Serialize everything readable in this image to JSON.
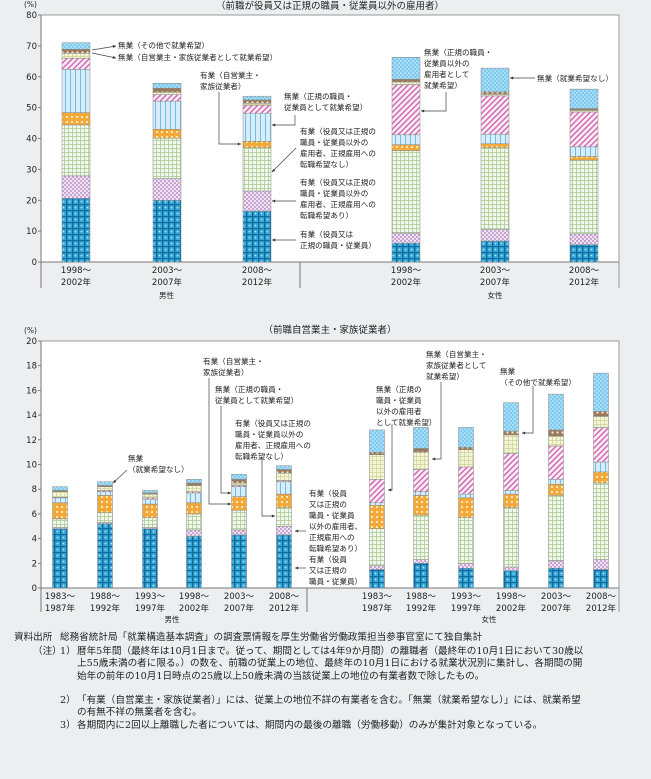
{
  "series_names": [
    "有業（役員又は正規の職員・従業員）",
    "有業（役員又は正規の職員・従業員以外の雇用者、正規雇用への転職希望あり）",
    "有業（役員又は正規の職員・従業員以外の雇用者、正規雇用への転職希望なし）",
    "有業（自営業主・家族従業者）",
    "無業（正規の職員・従業員として就業希望）",
    "無業（正規の職員・従業員以外の雇用者として就業希望）",
    "無業（自営業主・家族従業者として就業希望）",
    "無業（その他で就業希望）",
    "無業（就業希望なし）"
  ],
  "chart_data": [
    {
      "type": "bar",
      "stacked": true,
      "title": "（前職が役員又は正規の職員・従業員以外の雇用者）",
      "ylabel": "(%)",
      "ylim": [
        0,
        80
      ],
      "yticks": [
        0,
        10,
        20,
        30,
        40,
        50,
        60,
        70,
        80
      ],
      "groups": [
        {
          "name": "男性",
          "categories": [
            [
              "1998～",
              "2002年"
            ],
            [
              "2003～",
              "2007年"
            ],
            [
              "2008～",
              "2012年"
            ]
          ],
          "values": [
            [
              20.6,
              7.3,
              16.5,
              4.0,
              14.0,
              3.6,
              1.6,
              1.3,
              2.1
            ],
            [
              20.0,
              7.0,
              13.1,
              2.9,
              9.1,
              2.1,
              0.8,
              1.3,
              1.6
            ],
            [
              16.5,
              6.5,
              14.0,
              2.1,
              9.1,
              2.6,
              0.6,
              1.1,
              1.2
            ]
          ]
        },
        {
          "name": "女性",
          "categories": [
            [
              "1998～",
              "2002年"
            ],
            [
              "2003～",
              "2007年"
            ],
            [
              "2008～",
              "2012年"
            ]
          ],
          "values": [
            [
              6.1,
              3.3,
              26.7,
              1.9,
              3.2,
              16.2,
              0.9,
              0.9,
              7.1
            ],
            [
              6.8,
              3.7,
              26.5,
              1.3,
              3.1,
              12.4,
              0.5,
              0.8,
              7.7
            ],
            [
              5.6,
              3.5,
              23.9,
              1.2,
              3.1,
              11.3,
              0.5,
              0.6,
              6.3
            ]
          ]
        }
      ],
      "annotations": [
        [
          "無業（その他で就業希望）"
        ],
        [
          "無業（自営業主・家族従業者として就業希望）"
        ],
        [
          "有業（自営業主・",
          "家族従業者）"
        ],
        [
          "無業（正規の職員・",
          "従業員として就業希望）"
        ],
        [
          "有業（役員又は正規の",
          "職員・従業員以外の",
          "雇用者、正規雇用への",
          "転職希望なし）"
        ],
        [
          "有業（役員又は正規の",
          "職員・従業員以外の",
          "雇用者、正規雇用への",
          "転職希望あり）"
        ],
        [
          "有業（役員又は",
          "正規の職員・従業員）"
        ],
        [
          "無業（正規の職員・",
          "従業員以外の",
          "雇用者として",
          "就業希望）"
        ],
        [
          "無業（就業希望なし）"
        ]
      ]
    },
    {
      "type": "bar",
      "stacked": true,
      "title": "（前職自営業主・家族従業者）",
      "ylabel": "(%)",
      "ylim": [
        0,
        20
      ],
      "yticks": [
        0,
        2,
        4,
        6,
        8,
        10,
        12,
        14,
        16,
        18,
        20
      ],
      "groups": [
        {
          "name": "男性",
          "categories": [
            [
              "1983～",
              "1987年"
            ],
            [
              "1988～",
              "1992年"
            ],
            [
              "1993～",
              "1997年"
            ],
            [
              "1998～",
              "2002年"
            ],
            [
              "2003～",
              "2007年"
            ],
            [
              "2008～",
              "2012年"
            ]
          ],
          "values": [
            [
              4.8,
              0.1,
              0.7,
              1.3,
              0.4,
              0.05,
              0.45,
              0.1,
              0.3
            ],
            [
              5.2,
              0.1,
              0.8,
              1.4,
              0.3,
              0.1,
              0.3,
              0.1,
              0.3
            ],
            [
              4.8,
              0.1,
              0.8,
              1.1,
              0.4,
              0.1,
              0.3,
              0.1,
              0.2
            ],
            [
              4.2,
              0.5,
              1.3,
              0.9,
              0.8,
              0.1,
              0.5,
              0.2,
              0.3
            ],
            [
              4.3,
              0.4,
              1.6,
              1.1,
              0.8,
              0.1,
              0.2,
              0.3,
              0.4
            ],
            [
              4.3,
              0.7,
              1.5,
              1.1,
              1.0,
              0.1,
              0.6,
              0.3,
              0.3
            ]
          ]
        },
        {
          "name": "女性",
          "categories": [
            [
              "1983～",
              "1987年"
            ],
            [
              "1988～",
              "1992年"
            ],
            [
              "1993～",
              "1997年"
            ],
            [
              "1998～",
              "2002年"
            ],
            [
              "2003～",
              "2007年"
            ],
            [
              "2008～",
              "2012年"
            ]
          ],
          "values": [
            [
              1.5,
              0.3,
              3.0,
              1.9,
              0.2,
              1.9,
              2.0,
              0.2,
              1.8
            ],
            [
              2.0,
              0.3,
              3.6,
              1.6,
              0.3,
              1.8,
              1.4,
              0.3,
              1.7
            ],
            [
              1.6,
              0.4,
              3.7,
              1.6,
              0.3,
              2.2,
              1.4,
              0.2,
              1.6
            ],
            [
              1.4,
              0.3,
              4.8,
              1.1,
              0.3,
              3.0,
              1.5,
              0.3,
              2.3
            ],
            [
              1.6,
              0.6,
              5.3,
              0.9,
              0.4,
              2.7,
              0.8,
              0.5,
              2.9
            ],
            [
              1.5,
              0.8,
              6.2,
              0.9,
              0.8,
              2.8,
              0.9,
              0.4,
              3.1
            ]
          ]
        }
      ],
      "annotations": [
        [
          "無業",
          "（就業希望なし）"
        ],
        [
          "有業（自営業主・",
          "家族従業者）"
        ],
        [
          "無業（正規の職員・",
          "従業員として就業希望）"
        ],
        [
          "有業（役員又は正規の",
          "職員・従業員以外の",
          "雇用者、正規雇用への",
          "転職希望なし）"
        ],
        [
          "有業（役員",
          "又は正規の",
          "職員・従業員",
          "以外の雇用者、",
          "正規雇用への",
          "転職希望あり）"
        ],
        [
          "有業（役員",
          "又は正規の",
          "職員・従業員）"
        ],
        [
          "無業（正規の",
          "職員・従業員",
          "以外の雇用者",
          "として就業希望）"
        ],
        [
          "無業（自営業主・",
          "家族従業者として",
          "就業希望）"
        ],
        [
          "無業",
          "（その他で就業希望）"
        ]
      ]
    }
  ],
  "notes": {
    "source_label": "資料出所",
    "source_text": "総務省統計局「就業構造基本調査」の調査票情報を厚生労働省労働政策担当参事官室にて独自集計",
    "note_label": "（注）",
    "items": [
      {
        "num": "1）",
        "text": "暦年5年間（最終年は10月1日まで。従って、期間としては4年9か月間）の離職者（最終年の10月1日において30歳以上55歳未満の者に限る。）の数を、前職の従業上の地位、最終年の10月1日における就業状況別に集計し、各期間の開始年の前年の10月1日時点の25歳以上50歳未満の当該従業上の地位の有業者数で除したもの。"
      },
      {
        "num": "2）",
        "text": "「有業（自営業主・家族従業者）」には、従業上の地位不詳の有業者を含む。「無業（就業希望なし）」には、就業希望の有無不祥の無業者を含む。"
      },
      {
        "num": "3）",
        "text": "各期間内に2回以上離職した者については、期間内の最後の離職（労働移動）のみが集計対象となっている。"
      }
    ]
  }
}
